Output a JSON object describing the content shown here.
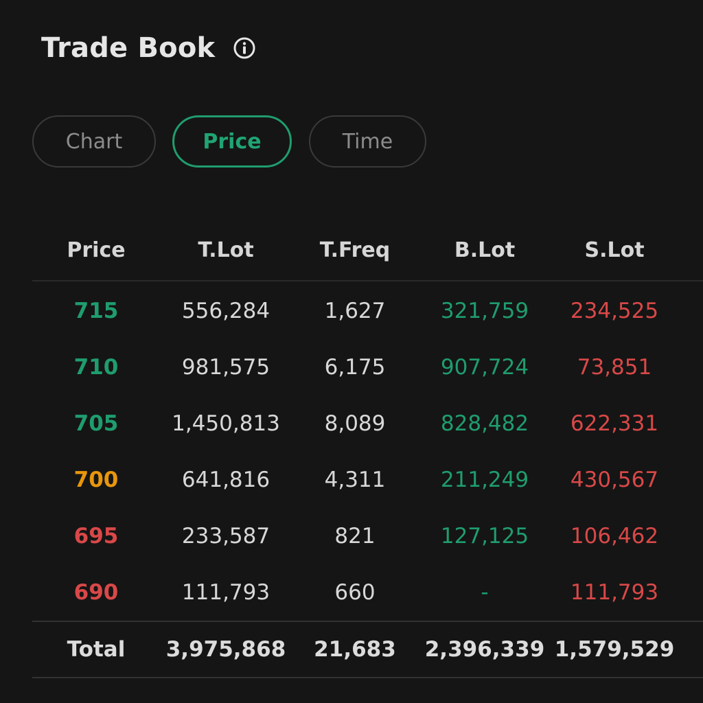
{
  "title": "Trade Book",
  "tabs": [
    {
      "label": "Chart"
    },
    {
      "label": "Price"
    },
    {
      "label": "Time"
    }
  ],
  "active_tab": "Price",
  "columns": [
    "Price",
    "T.Lot",
    "T.Freq",
    "B.Lot",
    "S.Lot"
  ],
  "rows": [
    {
      "price": "715",
      "tlot": "556,284",
      "tfreq": "1,627",
      "blot": "321,759",
      "slot": "234,525",
      "trend": "up"
    },
    {
      "price": "710",
      "tlot": "981,575",
      "tfreq": "6,175",
      "blot": "907,724",
      "slot": "73,851",
      "trend": "up"
    },
    {
      "price": "705",
      "tlot": "1,450,813",
      "tfreq": "8,089",
      "blot": "828,482",
      "slot": "622,331",
      "trend": "up"
    },
    {
      "price": "700",
      "tlot": "641,816",
      "tfreq": "4,311",
      "blot": "211,249",
      "slot": "430,567",
      "trend": "flat"
    },
    {
      "price": "695",
      "tlot": "233,587",
      "tfreq": "821",
      "blot": "127,125",
      "slot": "106,462",
      "trend": "down"
    },
    {
      "price": "690",
      "tlot": "111,793",
      "tfreq": "660",
      "blot": "-",
      "slot": "111,793",
      "trend": "down"
    }
  ],
  "total": {
    "label": "Total",
    "tlot": "3,975,868",
    "tfreq": "21,683",
    "blot": "2,396,339",
    "slot": "1,579,529"
  },
  "colors": {
    "background": "#151515",
    "accent_green": "#1f9d6e",
    "unchanged_orange": "#e8960c",
    "down_red": "#d94848"
  },
  "icons": {
    "info": "info-icon"
  }
}
